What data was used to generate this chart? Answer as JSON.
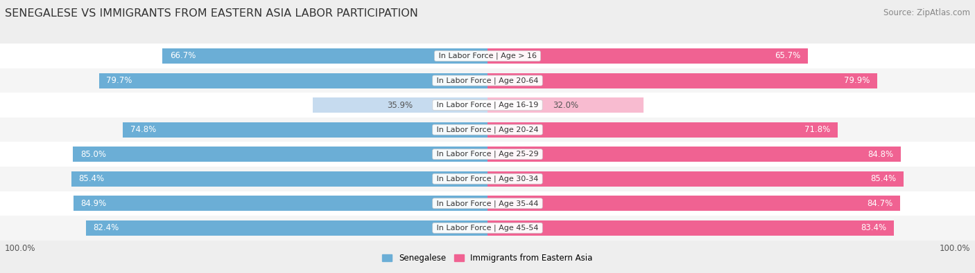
{
  "title": "SENEGALESE VS IMMIGRANTS FROM EASTERN ASIA LABOR PARTICIPATION",
  "source": "Source: ZipAtlas.com",
  "categories": [
    "In Labor Force | Age > 16",
    "In Labor Force | Age 20-64",
    "In Labor Force | Age 16-19",
    "In Labor Force | Age 20-24",
    "In Labor Force | Age 25-29",
    "In Labor Force | Age 30-34",
    "In Labor Force | Age 35-44",
    "In Labor Force | Age 45-54"
  ],
  "senegalese": [
    66.7,
    79.7,
    35.9,
    74.8,
    85.0,
    85.4,
    84.9,
    82.4
  ],
  "eastern_asia": [
    65.7,
    79.9,
    32.0,
    71.8,
    84.8,
    85.4,
    84.7,
    83.4
  ],
  "sen_color_full": "#6BAED6",
  "sen_color_light": "#C6DBEF",
  "ea_color_full": "#F06292",
  "ea_color_light": "#F8BBD0",
  "bg_color": "#EEEEEE",
  "row_bg_odd": "#F5F5F5",
  "row_bg_even": "#FFFFFF",
  "legend_sen": "Senegalese",
  "legend_ea": "Immigrants from Eastern Asia",
  "max_val": 100.0,
  "bar_height": 0.62,
  "title_fontsize": 11.5,
  "source_fontsize": 8.5,
  "val_fontsize": 8.5,
  "cat_fontsize": 8.0
}
